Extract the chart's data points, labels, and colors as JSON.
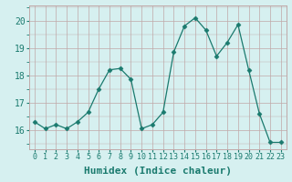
{
  "x": [
    0,
    1,
    2,
    3,
    4,
    5,
    6,
    7,
    8,
    9,
    10,
    11,
    12,
    13,
    14,
    15,
    16,
    17,
    18,
    19,
    20,
    21,
    22,
    23
  ],
  "y": [
    16.3,
    16.05,
    16.2,
    16.05,
    16.3,
    16.65,
    17.5,
    18.2,
    18.25,
    17.85,
    16.05,
    16.2,
    16.65,
    18.85,
    19.8,
    20.1,
    19.65,
    18.7,
    19.2,
    19.85,
    18.2,
    16.6,
    15.55,
    15.55
  ],
  "line_color": "#1a7a6e",
  "marker": "D",
  "marker_size": 2.5,
  "bg_color": "#d6f0f0",
  "grid_color": "#c0a8a8",
  "xlabel": "Humidex (Indice chaleur)",
  "xlim": [
    -0.5,
    23.5
  ],
  "ylim": [
    15.3,
    20.55
  ],
  "yticks": [
    16,
    17,
    18,
    19,
    20
  ],
  "xticks": [
    0,
    1,
    2,
    3,
    4,
    5,
    6,
    7,
    8,
    9,
    10,
    11,
    12,
    13,
    14,
    15,
    16,
    17,
    18,
    19,
    20,
    21,
    22,
    23
  ],
  "xlabel_color": "#1a7a6e",
  "tick_color": "#1a7a6e",
  "xlabel_fontsize": 8,
  "ytick_fontsize": 7,
  "xtick_fontsize": 6
}
